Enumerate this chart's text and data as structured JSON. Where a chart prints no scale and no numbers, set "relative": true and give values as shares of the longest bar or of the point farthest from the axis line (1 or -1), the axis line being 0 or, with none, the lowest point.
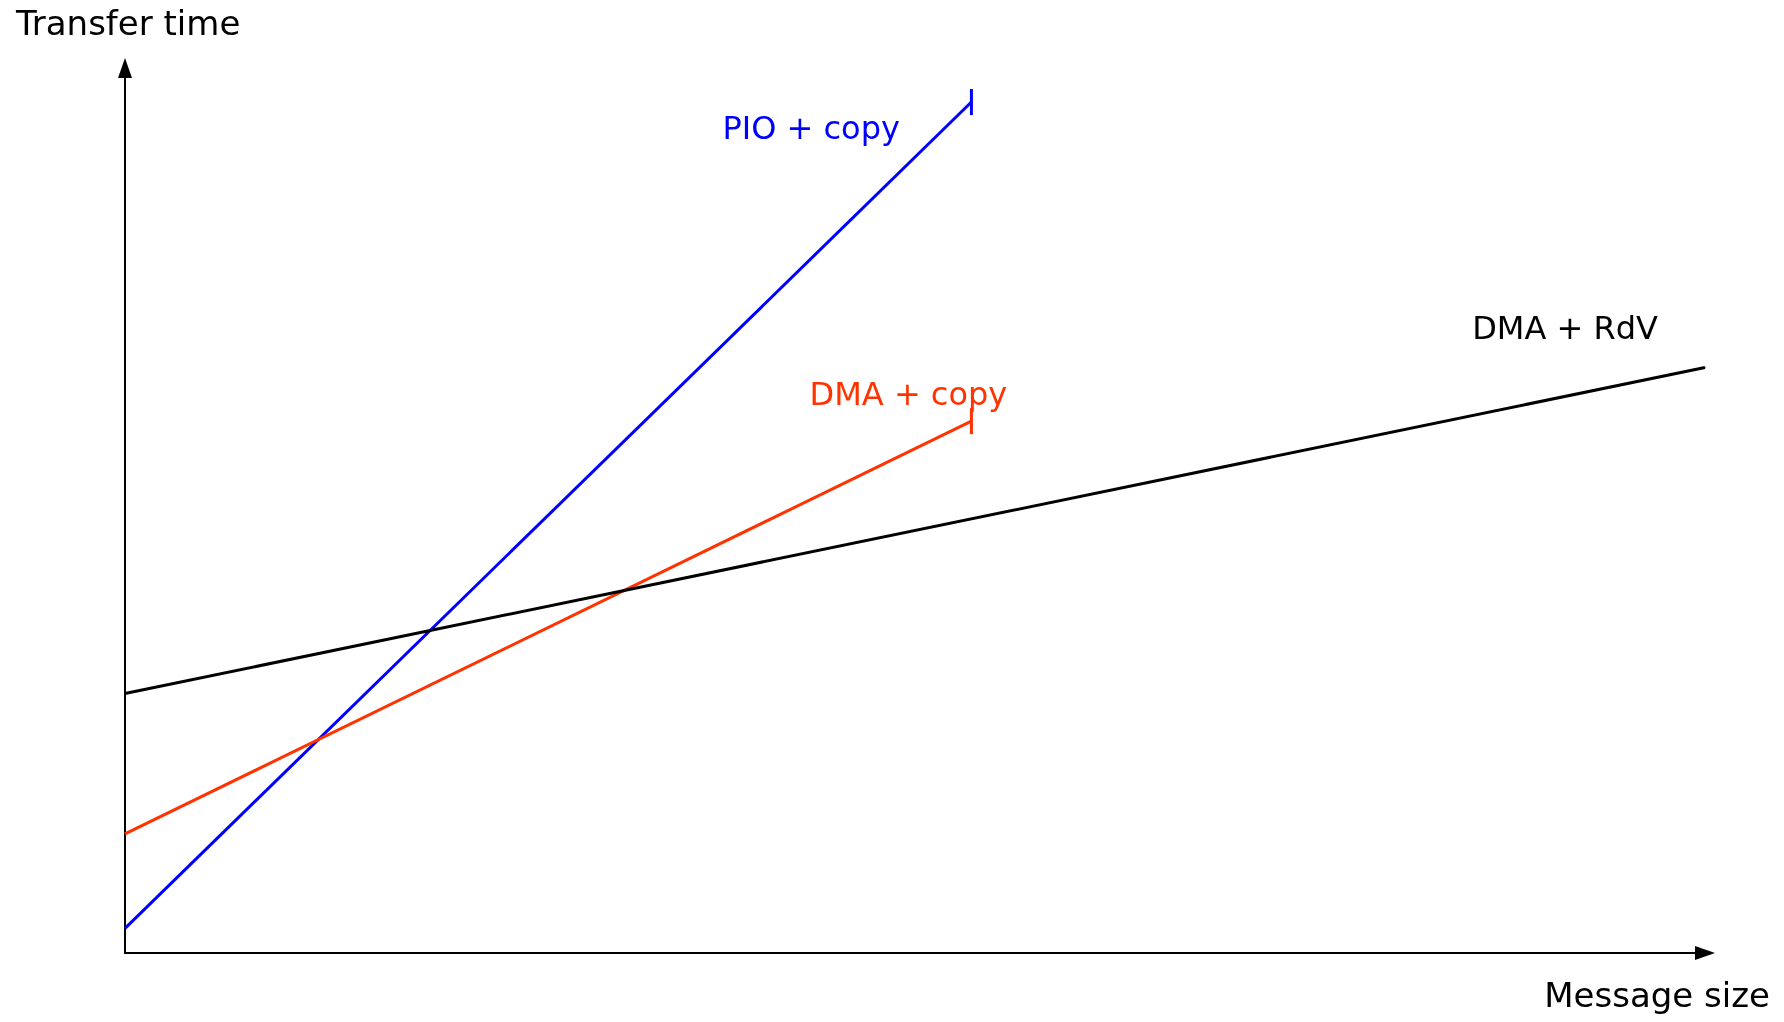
{
  "chart_data": {
    "type": "line",
    "relative": true,
    "xlabel": "Message size",
    "ylabel": "Transfer time",
    "grid": false,
    "legend": false,
    "categories": [
      null,
      null,
      null,
      null,
      null,
      null,
      null,
      null,
      null,
      null,
      null,
      null,
      null,
      null,
      null,
      null,
      null,
      null,
      null,
      null,
      null,
      null,
      null,
      null,
      null,
      null,
      null,
      null,
      null
    ],
    "series": [
      {
        "name": "PIO + copy",
        "color": "#0000ff",
        "values": [
          0.029,
          null,
          null,
          null,
          null,
          null,
          null,
          null,
          null,
          null,
          null,
          null,
          null,
          null,
          null,
          1,
          null,
          null,
          null,
          null,
          null,
          null,
          null,
          null,
          null,
          null,
          null,
          null,
          null
        ]
      },
      {
        "name": "DMA + copy",
        "color": "#ff3300",
        "values": [
          0.14,
          null,
          null,
          null,
          null,
          null,
          null,
          null,
          null,
          null,
          null,
          null,
          null,
          null,
          null,
          0.625,
          null,
          null,
          null,
          null,
          null,
          null,
          null,
          null,
          null,
          null,
          null,
          null,
          null
        ]
      },
      {
        "name": "DMA + RdV",
        "color": "#000000",
        "values": [
          0.305,
          null,
          null,
          null,
          null,
          null,
          null,
          null,
          null,
          null,
          null,
          null,
          null,
          null,
          null,
          null,
          null,
          null,
          null,
          null,
          null,
          null,
          null,
          null,
          null,
          null,
          null,
          null,
          0.688
        ]
      }
    ]
  }
}
